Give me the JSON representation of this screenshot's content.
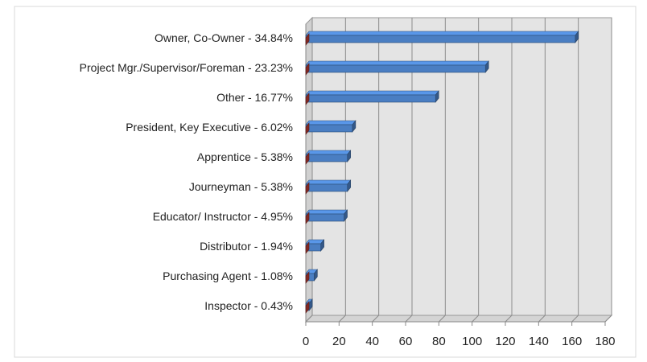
{
  "chart_data": {
    "type": "bar",
    "orientation": "horizontal",
    "categories": [
      "Owner, Co-Owner - 34.84%",
      "Project Mgr./Supervisor/Foreman - 23.23%",
      "Other - 16.77%",
      "President, Key Executive - 6.02%",
      "Apprentice - 5.38%",
      "Journeyman - 5.38%",
      "Educator/ Instructor - 4.95%",
      "Distributor - 1.94%",
      "Purchasing Agent - 1.08%",
      "Inspector - 0.43%"
    ],
    "series": [
      {
        "color": "#4a7ec2",
        "values": [
          162,
          108,
          78,
          28,
          25,
          25,
          23,
          9,
          5,
          2
        ]
      },
      {
        "color": "#b83a32",
        "values": [
          0,
          0,
          0,
          0,
          0,
          0,
          0,
          0,
          0,
          0
        ]
      }
    ],
    "xlim": [
      0,
      180
    ],
    "xticks": [
      0,
      20,
      40,
      60,
      80,
      100,
      120,
      140,
      160,
      180
    ],
    "grid": true
  }
}
